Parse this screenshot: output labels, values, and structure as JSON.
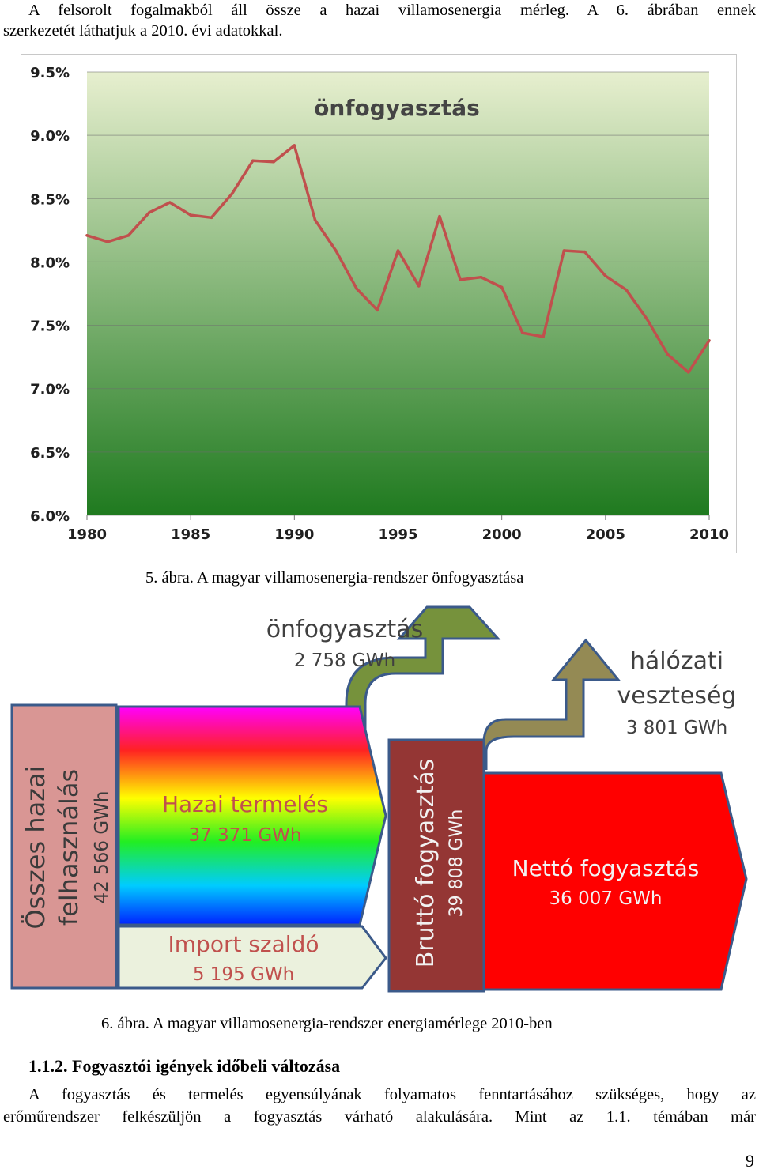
{
  "paragraph1": {
    "line1": "A felsorolt fogalmakból áll össze a hazai villamosenergia mérleg. A 6. ábrában ennek",
    "line2": "szerkezetét láthatjuk a 2010. évi adatokkal."
  },
  "figure5": {
    "caption": "5. ábra. A magyar villamosenergia-rendszer önfogyasztása",
    "chart_data": {
      "type": "line",
      "title": "önfogyasztás",
      "xlabel": "",
      "ylabel": "",
      "x": [
        1980,
        1981,
        1982,
        1983,
        1984,
        1985,
        1986,
        1987,
        1988,
        1989,
        1990,
        1991,
        1992,
        1993,
        1994,
        1995,
        1996,
        1997,
        1998,
        1999,
        2000,
        2001,
        2002,
        2003,
        2004,
        2005,
        2006,
        2007,
        2008,
        2009,
        2010
      ],
      "series": [
        {
          "values": [
            8.21,
            8.16,
            8.21,
            8.39,
            8.47,
            8.37,
            8.35,
            8.54,
            8.8,
            8.79,
            8.92,
            8.33,
            8.09,
            7.79,
            7.62,
            8.09,
            7.81,
            8.36,
            7.86,
            7.88,
            7.8,
            7.44,
            7.41,
            8.09,
            8.08,
            7.89,
            7.78,
            7.55,
            7.27,
            7.13,
            7.38
          ]
        }
      ],
      "xticks": [
        "1980",
        "1985",
        "1990",
        "1995",
        "2000",
        "2005",
        "2010"
      ],
      "yticks": [
        "9.5%",
        "9.0%",
        "8.5%",
        "8.0%",
        "7.5%",
        "7.0%",
        "6.5%",
        "6.0%"
      ],
      "xlim": [
        1980,
        2010
      ],
      "ylim": [
        6.0,
        9.5
      ],
      "grid": "horizontal",
      "colors": {
        "line": "#c0504d",
        "bg_top": "#e7efcf",
        "bg_bottom": "#1f7a1f",
        "frame": "#c8c8c8"
      }
    }
  },
  "figure6": {
    "caption": "6. ábra. A magyar villamosenergia-rendszer energiamérlege 2010-ben",
    "onfogyasztas": {
      "label": "önfogyasztás",
      "value": "2 758 GWh"
    },
    "halozati": {
      "label1": "hálózati",
      "label2": "veszteség",
      "value": "3 801 GWh"
    },
    "osszes": {
      "label1": "Összes hazai",
      "label2": "felhasználás",
      "value": "42 566 GWh"
    },
    "hazai": {
      "label": "Hazai termelés",
      "value": "37 371 GWh"
    },
    "import": {
      "label": "Import szaldó",
      "value": "5 195 GWh"
    },
    "brutto": {
      "label": "Bruttó fogyasztás",
      "value": "39 808 GWh"
    },
    "netto": {
      "label": "Nettó fogyasztás",
      "value": "36 007 GWh"
    },
    "colors": {
      "osszes_fill": "#d99694",
      "border": "#3b5a8a",
      "import_fill": "#ebf1dd",
      "brutto_fill": "#943634",
      "netto_fill": "#ff0000",
      "arrow1": "#76923c",
      "arrow2": "#948a54",
      "text_red": "#c0504d",
      "text_dark": "#404040"
    }
  },
  "section": {
    "heading": "1.1.2. Fogyasztói igények időbeli változása",
    "line1": "A fogyasztás és termelés egyensúlyának folyamatos fenntartásához szükséges, hogy az",
    "line2": "erőműrendszer felkészüljön a fogyasztás várható alakulására. Mint az 1.1. témában már"
  },
  "page_number": "9"
}
